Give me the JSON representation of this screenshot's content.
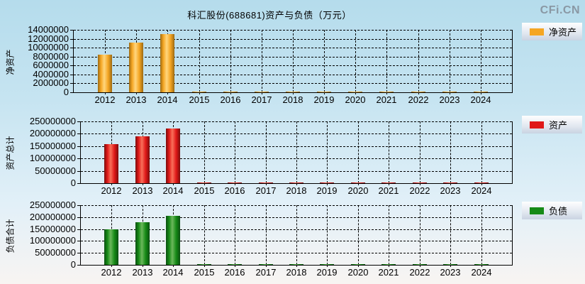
{
  "page": {
    "title": "科汇股份(688681)资产与负债（万元）",
    "logo": "CFi.CN"
  },
  "chart_data": [
    {
      "type": "bar",
      "title": "净资产",
      "ylabel": "净资产",
      "legend": "净资产",
      "categories": [
        "2012",
        "2013",
        "2014",
        "2015",
        "2016",
        "2017",
        "2018",
        "2019",
        "2020",
        "2021",
        "2022",
        "2023",
        "2024"
      ],
      "values": [
        8500000,
        11200000,
        13100000,
        150000,
        150000,
        150000,
        150000,
        150000,
        150000,
        150000,
        150000,
        150000,
        150000
      ],
      "ylim": [
        0,
        14000000
      ],
      "ytick_step": 2000000,
      "grid": "dashed",
      "legend_position": "right-top",
      "color": "#f5a623",
      "color_light": "#ffd67e",
      "color_dark": "#9c6a12"
    },
    {
      "type": "bar",
      "title": "资产",
      "ylabel": "资产总计",
      "legend": "资产",
      "categories": [
        "2012",
        "2013",
        "2014",
        "2015",
        "2016",
        "2017",
        "2018",
        "2019",
        "2020",
        "2021",
        "2022",
        "2023",
        "2024"
      ],
      "values": [
        158000000,
        191000000,
        220000000,
        2500000,
        2500000,
        2500000,
        2500000,
        2500000,
        2500000,
        2500000,
        2500000,
        2500000,
        2500000
      ],
      "ylim": [
        0,
        250000000
      ],
      "ytick_step": 50000000,
      "grid": "dashed",
      "legend_position": "right-top",
      "color": "#e01818",
      "color_light": "#f8705a",
      "color_dark": "#7a0c0c"
    },
    {
      "type": "bar",
      "title": "负债",
      "ylabel": "负债合计",
      "legend": "负债",
      "categories": [
        "2012",
        "2013",
        "2014",
        "2015",
        "2016",
        "2017",
        "2018",
        "2019",
        "2020",
        "2021",
        "2022",
        "2023",
        "2024"
      ],
      "values": [
        150000000,
        178000000,
        205000000,
        2000000,
        2000000,
        2000000,
        2000000,
        2000000,
        2000000,
        2000000,
        2000000,
        2000000,
        2000000
      ],
      "ylim": [
        0,
        250000000
      ],
      "ytick_step": 50000000,
      "grid": "dashed",
      "legend_position": "right-top",
      "color": "#168a16",
      "color_light": "#6cb85c",
      "color_dark": "#0a4f10"
    }
  ]
}
